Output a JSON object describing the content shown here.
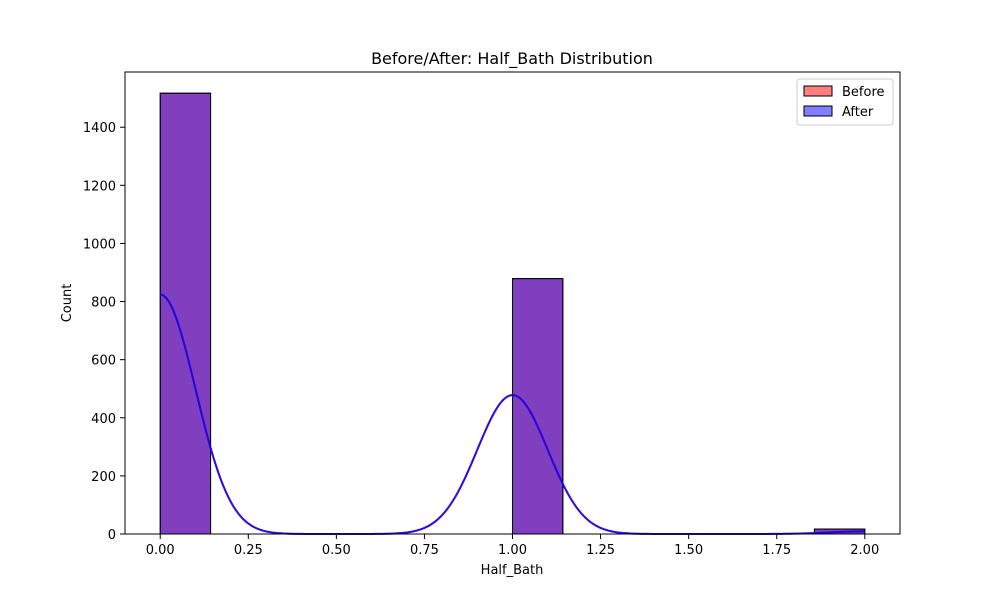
{
  "chart_data": {
    "type": "histogram",
    "title": "Before/After: Half_Bath Distribution",
    "xlabel": "Half_Bath",
    "ylabel": "Count",
    "xlim": [
      -0.1,
      2.1
    ],
    "ylim": [
      0,
      1590
    ],
    "x_ticks": [
      0.0,
      0.25,
      0.5,
      0.75,
      1.0,
      1.25,
      1.5,
      1.75,
      2.0
    ],
    "x_tick_labels": [
      "0.00",
      "0.25",
      "0.50",
      "0.75",
      "1.00",
      "1.25",
      "1.50",
      "1.75",
      "2.00"
    ],
    "y_ticks": [
      0,
      200,
      400,
      600,
      800,
      1000,
      1200,
      1400
    ],
    "y_tick_labels": [
      "0",
      "200",
      "400",
      "600",
      "800",
      "1000",
      "1200",
      "1400"
    ],
    "grid": false,
    "legend": {
      "placement": "top-right"
    },
    "series": [
      {
        "name": "Before",
        "color": "#ff0000",
        "alpha": 0.5,
        "bins": [
          {
            "x0": 0.0,
            "x1": 0.1429,
            "count": 1517
          },
          {
            "x0": 1.0,
            "x1": 1.1429,
            "count": 879
          },
          {
            "x0": 1.8571,
            "x1": 2.0,
            "count": 17
          }
        ]
      },
      {
        "name": "After",
        "color": "#0000ff",
        "alpha": 0.5,
        "bins": [
          {
            "x0": 0.0,
            "x1": 0.1429,
            "count": 1517
          },
          {
            "x0": 1.0,
            "x1": 1.1429,
            "count": 879
          },
          {
            "x0": 1.8571,
            "x1": 2.0,
            "count": 17
          }
        ]
      }
    ],
    "kde": {
      "bandwidth": 0.1,
      "peaks": [
        {
          "mu": 0.0,
          "height": 824
        },
        {
          "mu": 1.0,
          "height": 478
        },
        {
          "mu": 2.0,
          "height": 9
        }
      ],
      "colors": [
        "#ff0000",
        "#0000ff"
      ]
    }
  }
}
